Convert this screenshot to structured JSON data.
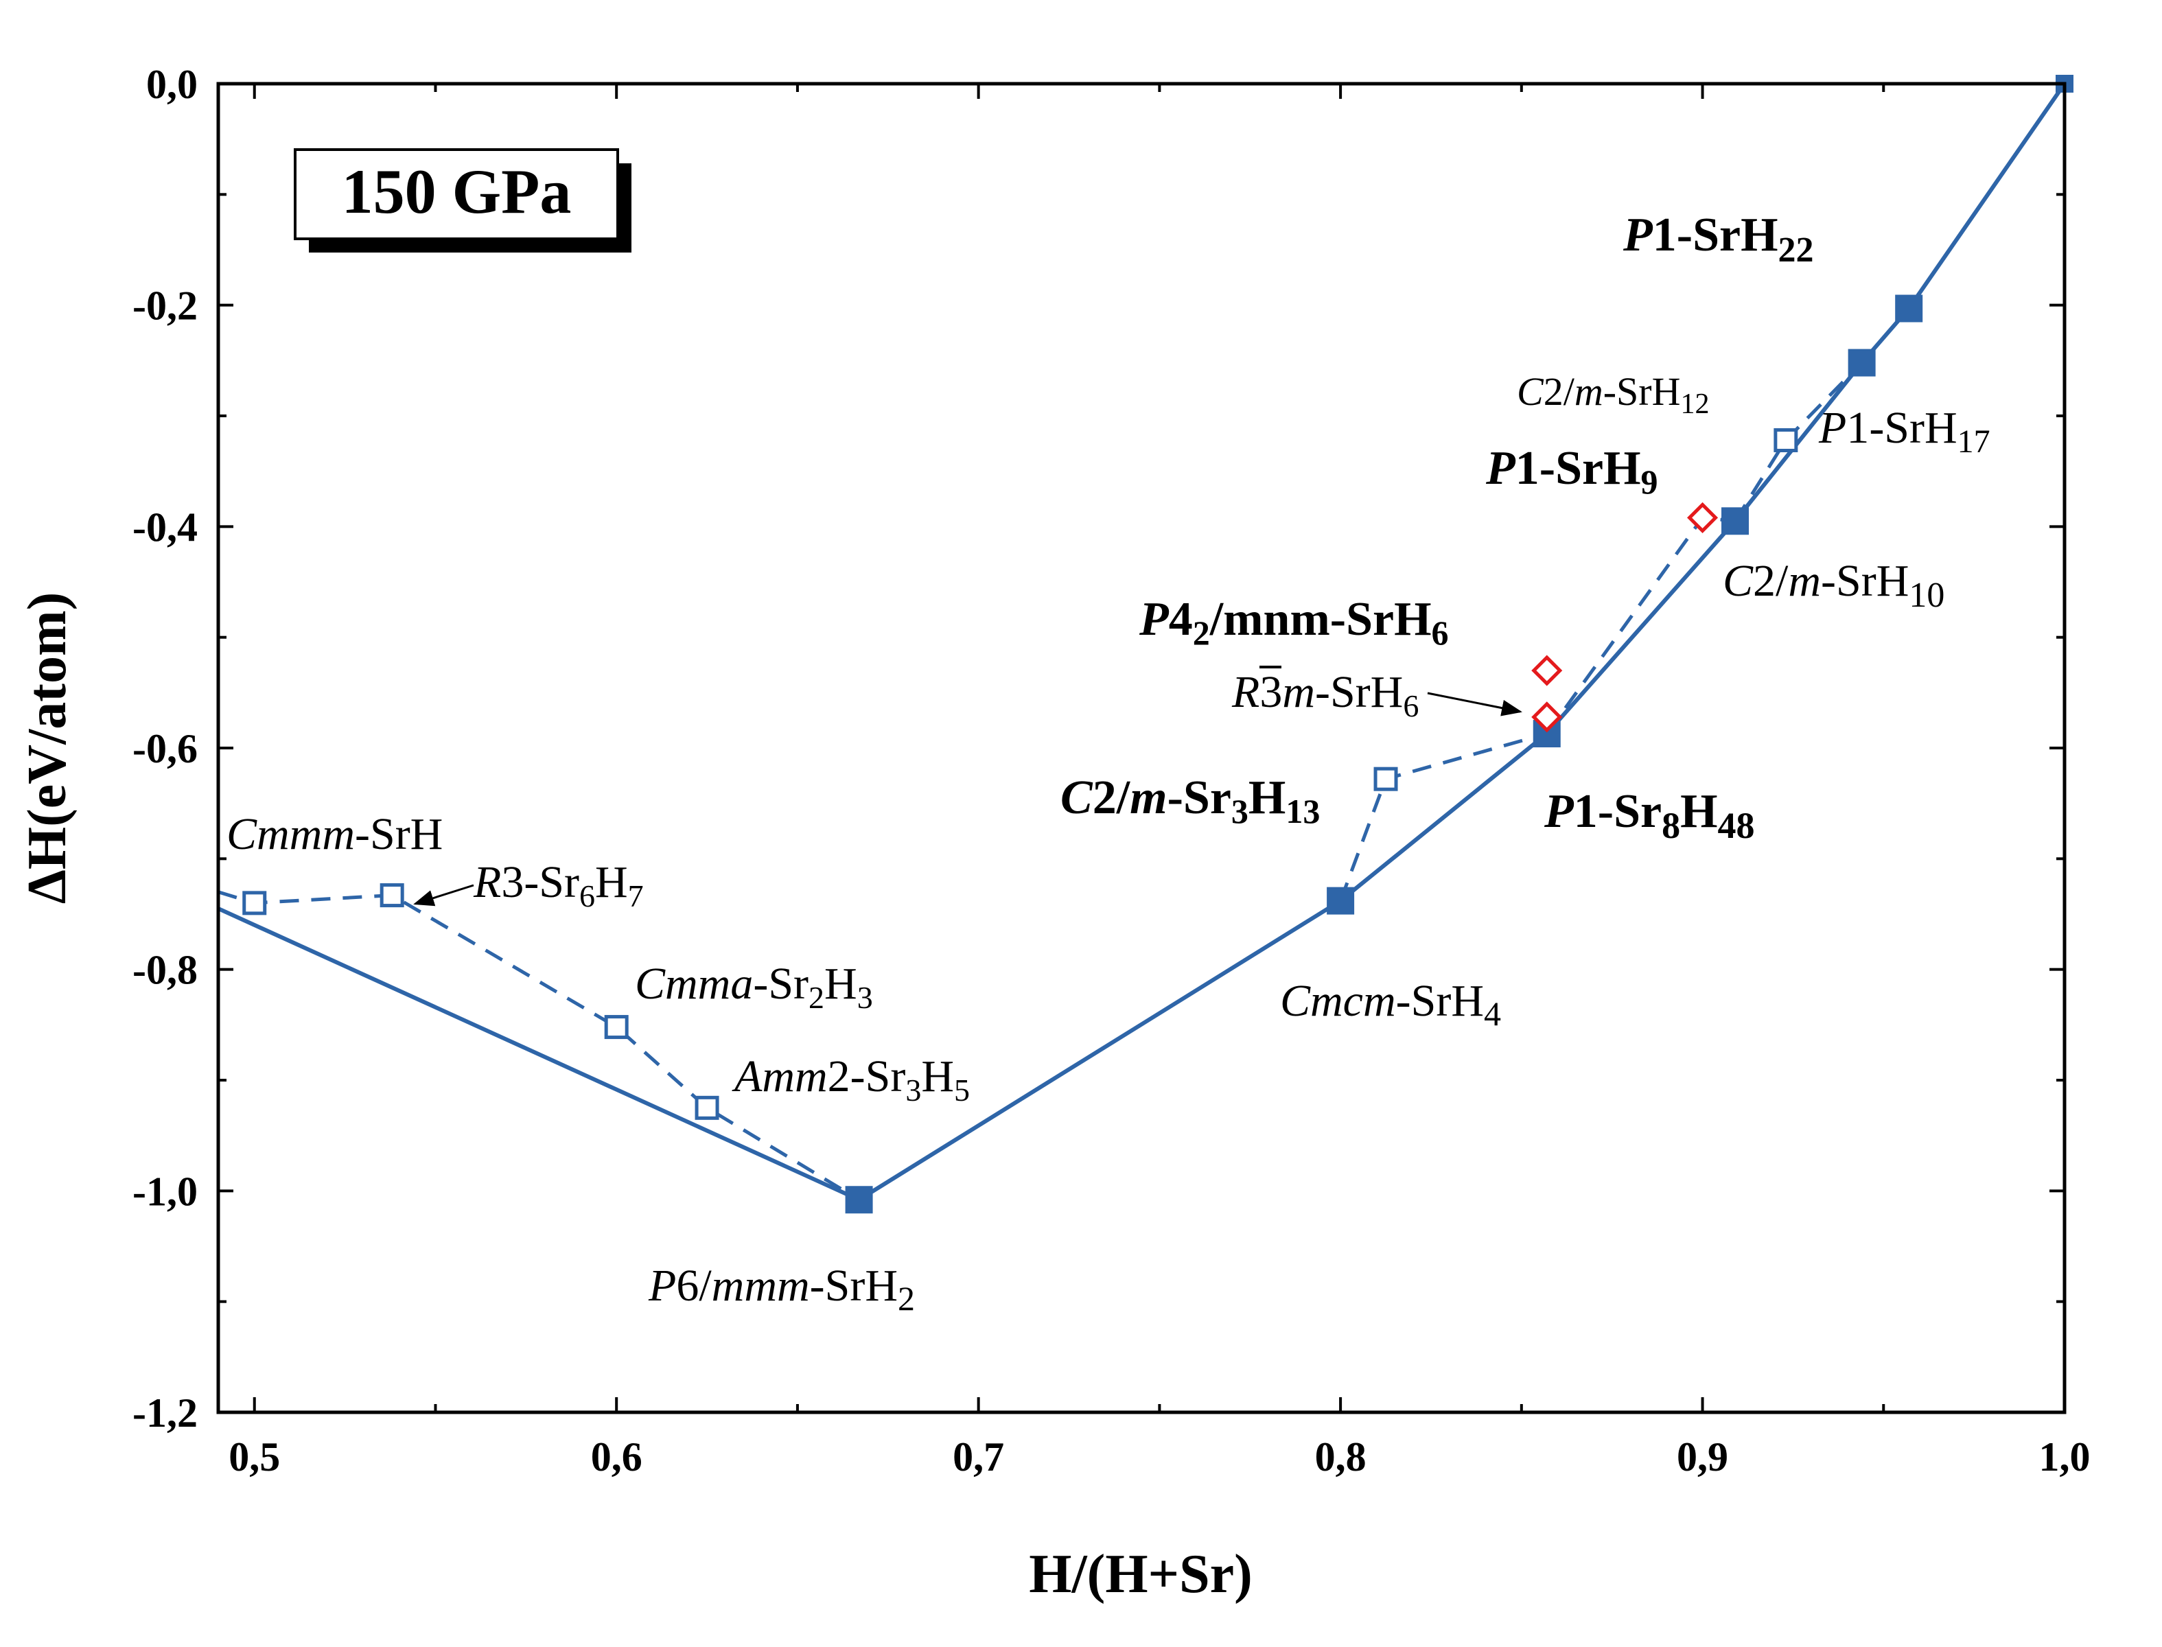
{
  "chart_data": {
    "type": "scatter",
    "annotation_box": "150 GPa",
    "xlabel": "H/(H+Sr)",
    "ylabel": "ΔH(eV/atom)",
    "xlim": [
      0.49,
      1.0
    ],
    "ylim": [
      -1.2,
      0.0
    ],
    "xticks": [
      "0,5",
      "0,6",
      "0,7",
      "0,8",
      "0,9",
      "1,0"
    ],
    "yticks": [
      "0,0",
      "-0,2",
      "-0,4",
      "-0,6",
      "-0,8",
      "-1,0",
      "-1,2"
    ],
    "colors": {
      "hull": "#2e65a8",
      "metastable": "#2e65a8",
      "highlight": "#e41a1c"
    },
    "series": [
      {
        "kind": "convex-hull",
        "style": "solid line, filled squares",
        "points": [
          {
            "x": 0.49,
            "y": -0.745
          },
          {
            "x": 0.667,
            "y": -1.008
          },
          {
            "x": 0.8,
            "y": -0.738
          },
          {
            "x": 0.857,
            "y": -0.587
          },
          {
            "x": 0.909,
            "y": -0.395
          },
          {
            "x": 0.944,
            "y": -0.252
          },
          {
            "x": 0.957,
            "y": -0.203
          },
          {
            "x": 1.0,
            "y": 0.0
          }
        ]
      },
      {
        "kind": "metastable",
        "style": "dashed line, open squares",
        "segments": [
          [
            {
              "x": 0.49,
              "y": -0.73
            },
            {
              "x": 0.5,
              "y": -0.74
            },
            {
              "x": 0.538,
              "y": -0.733
            },
            {
              "x": 0.6,
              "y": -0.852
            },
            {
              "x": 0.625,
              "y": -0.925
            },
            {
              "x": 0.667,
              "y": -1.008
            }
          ],
          [
            {
              "x": 0.8,
              "y": -0.738
            },
            {
              "x": 0.8125,
              "y": -0.628
            },
            {
              "x": 0.857,
              "y": -0.587
            }
          ],
          [
            {
              "x": 0.857,
              "y": -0.587
            },
            {
              "x": 0.9,
              "y": -0.392
            },
            {
              "x": 0.909,
              "y": -0.395
            }
          ],
          [
            {
              "x": 0.909,
              "y": -0.395
            },
            {
              "x": 0.923,
              "y": -0.322
            },
            {
              "x": 0.944,
              "y": -0.252
            }
          ]
        ],
        "open_points": [
          {
            "x": 0.5,
            "y": -0.74
          },
          {
            "x": 0.538,
            "y": -0.733
          },
          {
            "x": 0.6,
            "y": -0.852
          },
          {
            "x": 0.625,
            "y": -0.925
          },
          {
            "x": 0.8125,
            "y": -0.628
          },
          {
            "x": 0.923,
            "y": -0.322
          }
        ]
      },
      {
        "kind": "highlighted",
        "style": "open red diamonds",
        "points": [
          {
            "x": 0.9,
            "y": -0.392
          },
          {
            "x": 0.857,
            "y": -0.53
          },
          {
            "x": 0.857,
            "y": -0.572
          }
        ]
      }
    ],
    "annotations": [
      {
        "label": "Cmmm-SrH",
        "x": 0.5,
        "y": -0.74
      },
      {
        "label": "R3-Sr6H7",
        "x": 0.538,
        "y": -0.733
      },
      {
        "label": "Cmma-Sr2H3",
        "x": 0.6,
        "y": -0.852
      },
      {
        "label": "Amm2-Sr3H5",
        "x": 0.625,
        "y": -0.925
      },
      {
        "label": "P6/mmm-SrH2",
        "x": 0.667,
        "y": -1.008
      },
      {
        "label": "Cmcm-SrH4",
        "x": 0.8,
        "y": -0.738
      },
      {
        "label": "C2/m-Sr3H13",
        "x": 0.8125,
        "y": -0.628
      },
      {
        "label": "P1-Sr8H48",
        "x": 0.857,
        "y": -0.587
      },
      {
        "label": "R3m-SrH6",
        "x": 0.857,
        "y": -0.572
      },
      {
        "label": "P42/mnm-SrH6",
        "x": 0.857,
        "y": -0.53
      },
      {
        "label": "P1-SrH9",
        "x": 0.9,
        "y": -0.392
      },
      {
        "label": "C2/m-SrH10",
        "x": 0.909,
        "y": -0.395
      },
      {
        "label": "C2/m-SrH12",
        "x": 0.923,
        "y": -0.322
      },
      {
        "label": "P1-SrH17",
        "x": 0.944,
        "y": -0.252
      },
      {
        "label": "P1-SrH22",
        "x": 0.957,
        "y": -0.203
      }
    ]
  }
}
